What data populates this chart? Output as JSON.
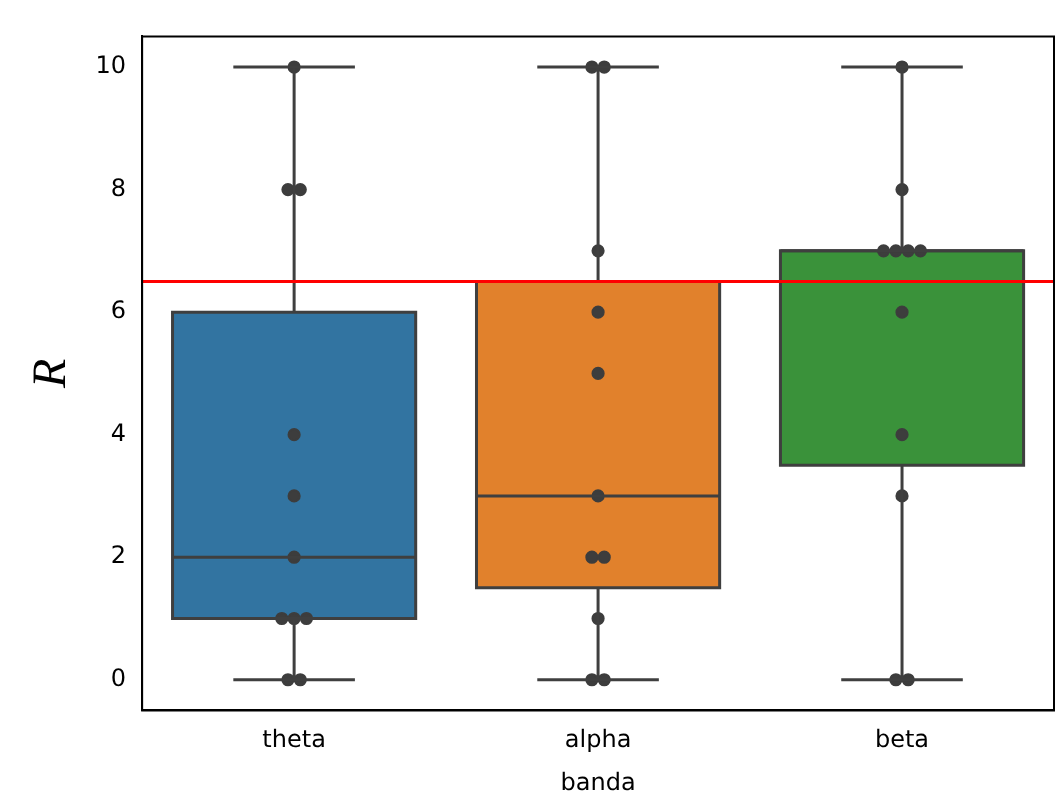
{
  "chart_data": {
    "type": "box",
    "xlabel": "banda",
    "ylabel": "R",
    "categories": [
      "theta",
      "alpha",
      "beta"
    ],
    "colors": [
      "#3274a1",
      "#e1812c",
      "#3a923a"
    ],
    "boxes": [
      {
        "low": 0,
        "q1": 1,
        "median": 2,
        "q3": 6,
        "high": 10
      },
      {
        "low": 0,
        "q1": 1.5,
        "median": 3,
        "q3": 6.5,
        "high": 10
      },
      {
        "low": 0,
        "q1": 3.5,
        "median": 7,
        "q3": 7,
        "high": 10
      }
    ],
    "ylim": [
      -0.5,
      10.5
    ],
    "yticks": [
      0,
      2,
      4,
      6,
      8,
      10
    ],
    "grid": false,
    "legend": false,
    "ref_lines": [
      {
        "axis": "y",
        "value": 6.5,
        "color": "#ff0000"
      }
    ],
    "series": [
      {
        "type": "scatter",
        "color": "#3d3d3d",
        "x": [
          "theta",
          "theta",
          "theta",
          "theta",
          "theta",
          "theta",
          "theta",
          "theta",
          "theta",
          "theta",
          "theta",
          "alpha",
          "alpha",
          "alpha",
          "alpha",
          "alpha",
          "alpha",
          "alpha",
          "alpha",
          "alpha",
          "alpha",
          "alpha",
          "beta",
          "beta",
          "beta",
          "beta",
          "beta",
          "beta",
          "beta",
          "beta",
          "beta",
          "beta",
          "beta"
        ],
        "values": [
          0,
          0,
          1,
          1,
          1,
          2,
          3,
          4,
          8,
          8,
          10,
          0,
          0,
          1,
          2,
          2,
          3,
          5,
          6,
          7,
          10,
          10,
          0,
          0,
          3,
          4,
          6,
          7,
          7,
          7,
          7,
          8,
          10
        ]
      }
    ]
  }
}
